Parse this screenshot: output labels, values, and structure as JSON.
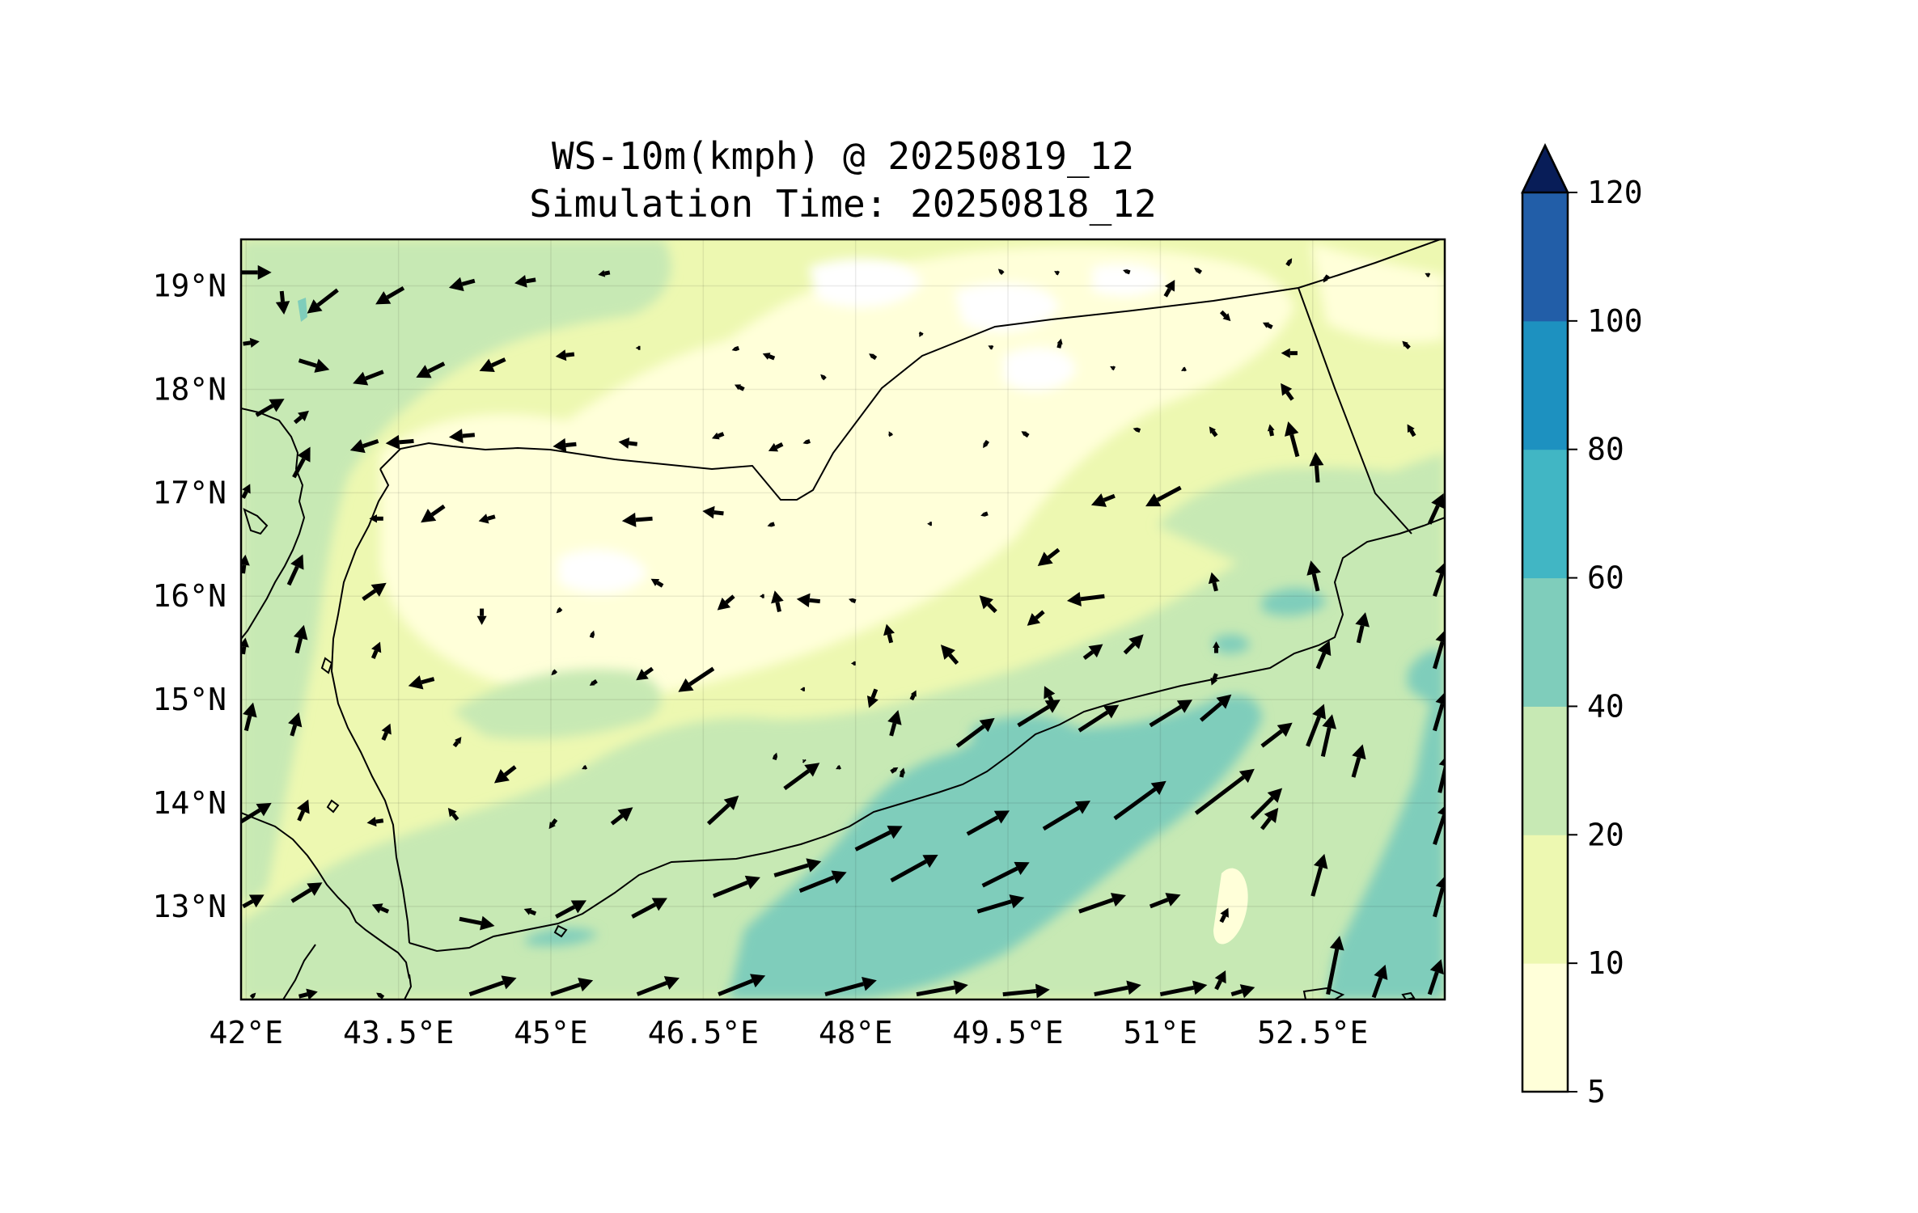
{
  "title": {
    "line1": "WS-10m(kmph) @ 20250819_12",
    "line2": "Simulation Time: 20250818_12"
  },
  "map": {
    "lon_range": [
      41.95,
      53.8
    ],
    "lat_range": [
      12.1,
      19.45
    ],
    "lon_ticks": [
      {
        "value": 42.0,
        "label": "42°E"
      },
      {
        "value": 43.5,
        "label": "43.5°E"
      },
      {
        "value": 45.0,
        "label": "45°E"
      },
      {
        "value": 46.5,
        "label": "46.5°E"
      },
      {
        "value": 48.0,
        "label": "48°E"
      },
      {
        "value": 49.5,
        "label": "49.5°E"
      },
      {
        "value": 51.0,
        "label": "51°E"
      },
      {
        "value": 52.5,
        "label": "52.5°E"
      }
    ],
    "lat_ticks": [
      {
        "value": 19,
        "label": "19°N"
      },
      {
        "value": 18,
        "label": "18°N"
      },
      {
        "value": 17,
        "label": "17°N"
      },
      {
        "value": 16,
        "label": "16°N"
      },
      {
        "value": 15,
        "label": "15°N"
      },
      {
        "value": 14,
        "label": "14°N"
      },
      {
        "value": 13,
        "label": "13°N"
      }
    ],
    "gridlines": true
  },
  "colorbar": {
    "labels": [
      "5",
      "10",
      "20",
      "40",
      "60",
      "80",
      "100",
      "120"
    ],
    "levels": [
      5,
      10,
      20,
      40,
      60,
      80,
      100,
      120
    ],
    "colors": [
      "#ffffd9",
      "#edf8b1",
      "#c7e9b4",
      "#7fcdbb",
      "#41b6c4",
      "#1d91c0",
      "#225ea8",
      "#253494"
    ],
    "extend_color": "#081d58",
    "extend": "max"
  },
  "colors": {
    "c0": "#ffffd9",
    "c1": "#edf8b1",
    "c2": "#c7e9b4",
    "c3": "#7fcdbb",
    "white": "#ffffff",
    "arrow": "#000000"
  }
}
